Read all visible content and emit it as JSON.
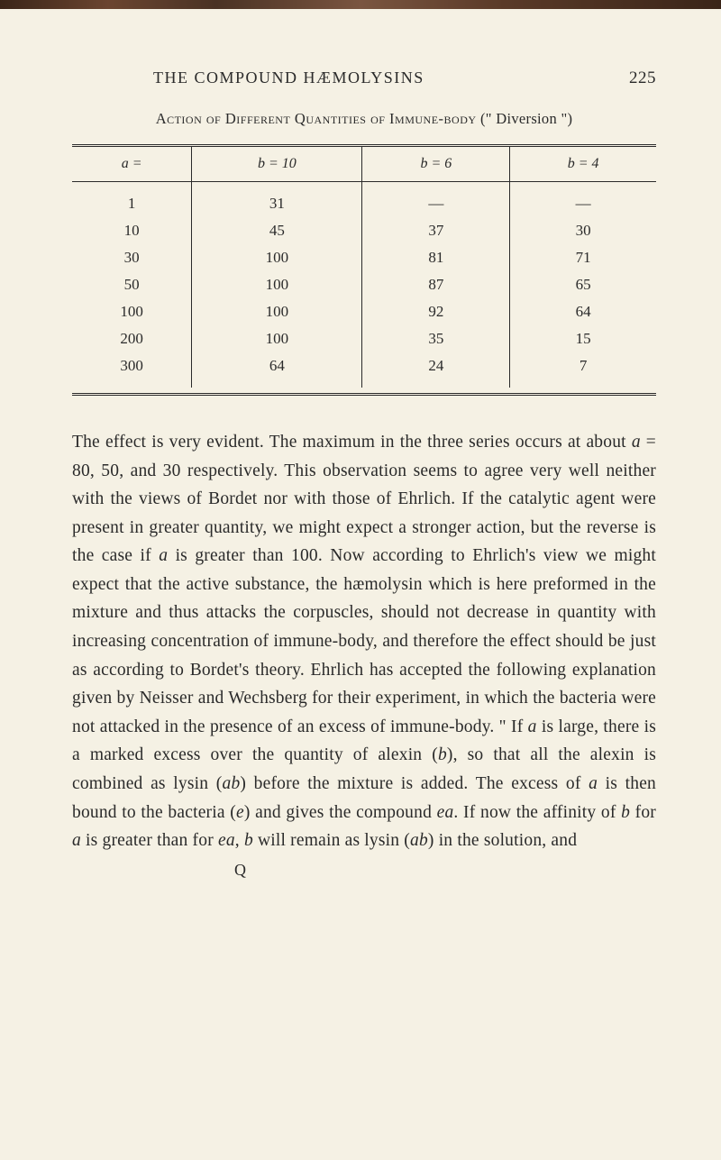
{
  "header": {
    "title": "THE COMPOUND HÆMOLYSINS",
    "page_number": "225"
  },
  "table": {
    "caption_prefix": "Action of Different Quantities of Immune-body",
    "caption_suffix": "(\" Diversion \")",
    "headers": [
      "a =",
      "b = 10",
      "b = 6",
      "b = 4"
    ],
    "rows": [
      [
        "1",
        "31",
        "—",
        "—"
      ],
      [
        "10",
        "45",
        "37",
        "30"
      ],
      [
        "30",
        "100",
        "81",
        "71"
      ],
      [
        "50",
        "100",
        "87",
        "65"
      ],
      [
        "100",
        "100",
        "92",
        "64"
      ],
      [
        "200",
        "100",
        "35",
        "15"
      ],
      [
        "300",
        "64",
        "24",
        "7"
      ]
    ],
    "styling": {
      "border_color": "#2a2a2a",
      "font_size_header": 16,
      "font_size_cell": 17,
      "rule_style": "double"
    }
  },
  "paragraph": {
    "text_parts": [
      "The effect is very evident. The maximum in the three series occurs at about ",
      " = 80, 50, and 30 respectively. This observation seems to agree very well neither with the views of Bordet nor with those of Ehrlich. If the catalytic agent were present in greater quantity, we might expect a stronger action, but the reverse is the case if ",
      " is greater than 100. Now according to Ehrlich's view we might expect that the active substance, the hæmolysin which is here preformed in the mixture and thus attacks the corpuscles, should not decrease in quantity with increasing concentration of immune-body, and therefore the effect should be just as according to Bordet's theory. Ehrlich has accepted the following explanation given by Neisser and Wechsberg for their experiment, in which the bacteria were not attacked in the presence of an excess of immune-body. \" If ",
      " is large, there is a marked excess over the quantity of alexin (",
      "), so that all the alexin is combined as lysin (",
      ") before the mixture is added. The excess of ",
      " is then bound to the bacteria (",
      ") and gives the compound ",
      ". If now the affinity of ",
      " for ",
      " is greater than for ",
      ", ",
      " will remain as lysin (",
      ") in the solution, and"
    ],
    "italics": [
      "a",
      "a",
      "a",
      "b",
      "ab",
      "a",
      "e",
      "ea",
      "b",
      "a",
      "ea",
      "b",
      "ab"
    ]
  },
  "signature_mark": "Q",
  "colors": {
    "background": "#f5f1e4",
    "text": "#2a2a2a"
  }
}
